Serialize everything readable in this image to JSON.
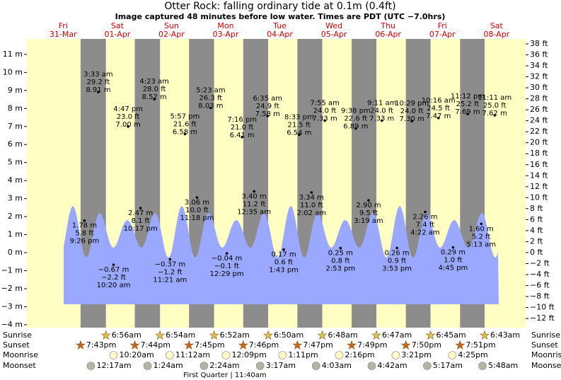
{
  "header": {
    "title": "Otter Rock: falling  ordinary tide at 0.1m (0.4ft)",
    "subtitle": "Image captured 48 minutes before low water. Times are PDT (UTC −7.0hrs)"
  },
  "chart_data": {
    "type": "tide",
    "xlim": [
      -4.08,
      216.9
    ],
    "ylim": [
      -4.16,
      11.86
    ],
    "y2lim": [
      -13.66,
      38.9
    ],
    "yticks": [
      {
        "value": 11,
        "label": "11 m"
      },
      {
        "value": 10,
        "label": "10 m"
      },
      {
        "value": 9,
        "label": "9 m"
      },
      {
        "value": 8,
        "label": "8 m"
      },
      {
        "value": 7,
        "label": "7 m"
      },
      {
        "value": 6,
        "label": "6 m"
      },
      {
        "value": 5,
        "label": "5 m"
      },
      {
        "value": 4,
        "label": "4 m"
      },
      {
        "value": 3,
        "label": "3 m"
      },
      {
        "value": 2,
        "label": "2 m"
      },
      {
        "value": 1,
        "label": "1 m"
      },
      {
        "value": 0,
        "label": "0 m"
      },
      {
        "value": -1,
        "label": "−1 m"
      },
      {
        "value": -2,
        "label": "−2 m"
      },
      {
        "value": -3,
        "label": "−3 m"
      },
      {
        "value": -4,
        "label": "−4 m"
      }
    ],
    "y2ticks": [
      {
        "value": 38,
        "label": "38 ft"
      },
      {
        "value": 36,
        "label": "36 ft"
      },
      {
        "value": 34,
        "label": "34 ft"
      },
      {
        "value": 32,
        "label": "32 ft"
      },
      {
        "value": 30,
        "label": "30 ft"
      },
      {
        "value": 28,
        "label": "28 ft"
      },
      {
        "value": 26,
        "label": "26 ft"
      },
      {
        "value": 24,
        "label": "24 ft"
      },
      {
        "value": 22,
        "label": "22 ft"
      },
      {
        "value": 20,
        "label": "20 ft"
      },
      {
        "value": 18,
        "label": "18 ft"
      },
      {
        "value": 16,
        "label": "16 ft"
      },
      {
        "value": 14,
        "label": "14 ft"
      },
      {
        "value": 12,
        "label": "12 ft"
      },
      {
        "value": 10,
        "label": "10 ft"
      },
      {
        "value": 8,
        "label": "8 ft"
      },
      {
        "value": 6,
        "label": "6 ft"
      },
      {
        "value": 4,
        "label": "4 ft"
      },
      {
        "value": 2,
        "label": "2 ft"
      },
      {
        "value": 0,
        "label": "0 ft"
      },
      {
        "value": -2,
        "label": "−2 ft"
      },
      {
        "value": -4,
        "label": "−4 ft"
      },
      {
        "value": -6,
        "label": "−6 ft"
      },
      {
        "value": -8,
        "label": "−8 ft"
      },
      {
        "value": -10,
        "label": "−10 ft"
      },
      {
        "value": -12,
        "label": "−12 ft"
      }
    ],
    "days": [
      {
        "t": 12,
        "weekday": "Fri",
        "date": "31-Mar"
      },
      {
        "t": 36,
        "weekday": "Sat",
        "date": "01-Apr"
      },
      {
        "t": 60,
        "weekday": "Sun",
        "date": "02-Apr"
      },
      {
        "t": 84,
        "weekday": "Mon",
        "date": "03-Apr"
      },
      {
        "t": 108,
        "weekday": "Tue",
        "date": "04-Apr"
      },
      {
        "t": 132,
        "weekday": "Wed",
        "date": "05-Apr"
      },
      {
        "t": 156,
        "weekday": "Thu",
        "date": "06-Apr"
      },
      {
        "t": 180,
        "weekday": "Fri",
        "date": "07-Apr"
      },
      {
        "t": 204,
        "weekday": "Sat",
        "date": "08-Apr"
      }
    ],
    "events": [
      {
        "t": 21.43,
        "time": "9:26 pm",
        "m": 1.78,
        "m_label": "1.78 m",
        "ft": 5.8,
        "ft_label": "5.8 ft"
      },
      {
        "t": 27.55,
        "time": "3:33 am",
        "m": 8.91,
        "m_label": "8.91 m",
        "ft": 29.2,
        "ft_label": "29.2 ft"
      },
      {
        "t": 34.33,
        "time": "10:20 am",
        "m": -0.67,
        "m_label": "−0.67 m",
        "ft": -2.2,
        "ft_label": "−2.2 ft"
      },
      {
        "t": 40.78,
        "time": "4:47 pm",
        "m": 7.0,
        "m_label": "7.00 m",
        "ft": 23.0,
        "ft_label": "23.0 ft"
      },
      {
        "t": 46.28,
        "time": "10:17 pm",
        "m": 2.47,
        "m_label": "2.47 m",
        "ft": 8.1,
        "ft_label": "8.1 ft"
      },
      {
        "t": 52.38,
        "time": "4:23 am",
        "m": 8.52,
        "m_label": "8.52 m",
        "ft": 28.0,
        "ft_label": "28.0 ft"
      },
      {
        "t": 59.35,
        "time": "11:21 am",
        "m": -0.37,
        "m_label": "−0.37 m",
        "ft": -1.2,
        "ft_label": "−1.2 ft"
      },
      {
        "t": 65.95,
        "time": "5:57 pm",
        "m": 6.58,
        "m_label": "6.58 m",
        "ft": 21.6,
        "ft_label": "21.6 ft"
      },
      {
        "t": 71.3,
        "time": "11:18 pm",
        "m": 3.06,
        "m_label": "3.06 m",
        "ft": 10.0,
        "ft_label": "10.0 ft"
      },
      {
        "t": 77.38,
        "time": "5:23 am",
        "m": 8.03,
        "m_label": "8.03 m",
        "ft": 26.3,
        "ft_label": "26.3 ft"
      },
      {
        "t": 84.48,
        "time": "12:29 pm",
        "m": -0.04,
        "m_label": "−0.04 m",
        "ft": -0.1,
        "ft_label": "−0.1 ft"
      },
      {
        "t": 91.27,
        "time": "7:16 pm",
        "m": 6.41,
        "m_label": "6.41 m",
        "ft": 21.0,
        "ft_label": "21.0 ft"
      },
      {
        "t": 96.58,
        "time": "12:35 am",
        "m": 3.4,
        "m_label": "3.40 m",
        "ft": 11.2,
        "ft_label": "11.2 ft"
      },
      {
        "t": 102.58,
        "time": "6:35 am",
        "m": 7.58,
        "m_label": "7.58 m",
        "ft": 24.9,
        "ft_label": "24.9 ft"
      },
      {
        "t": 109.72,
        "time": "1:43 pm",
        "m": 0.17,
        "m_label": "0.17 m",
        "ft": 0.6,
        "ft_label": "0.6 ft"
      },
      {
        "t": 116.55,
        "time": "8:33 pm",
        "m": 6.54,
        "m_label": "6.54 m",
        "ft": 21.5,
        "ft_label": "21.5 ft"
      },
      {
        "t": 122.03,
        "time": "2:02 am",
        "m": 3.34,
        "m_label": "3.34 m",
        "ft": 11.0,
        "ft_label": "11.0 ft"
      },
      {
        "t": 127.92,
        "time": "7:55 am",
        "m": 7.33,
        "m_label": "7.33 m",
        "ft": 24.0,
        "ft_label": "24.0 ft"
      },
      {
        "t": 134.88,
        "time": "2:53 pm",
        "m": 0.25,
        "m_label": "0.25 m",
        "ft": 0.8,
        "ft_label": "0.8 ft"
      },
      {
        "t": 141.63,
        "time": "9:38 pm",
        "m": 6.89,
        "m_label": "6.89 m",
        "ft": 22.6,
        "ft_label": "22.6 ft"
      },
      {
        "t": 147.32,
        "time": "3:19 am",
        "m": 2.9,
        "m_label": "2.90 m",
        "ft": 9.5,
        "ft_label": "9.5 ft"
      },
      {
        "t": 153.18,
        "time": "9:11 am",
        "m": 7.33,
        "m_label": "7.33 m",
        "ft": 24.0,
        "ft_label": "24.0 ft"
      },
      {
        "t": 159.88,
        "time": "3:53 pm",
        "m": 0.26,
        "m_label": "0.26 m",
        "ft": 0.9,
        "ft_label": "0.9 ft"
      },
      {
        "t": 166.48,
        "time": "10:29 pm",
        "m": 7.3,
        "m_label": "7.30 m",
        "ft": 24.0,
        "ft_label": "24.0 ft"
      },
      {
        "t": 172.37,
        "time": "4:22 am",
        "m": 2.26,
        "m_label": "2.26 m",
        "ft": 7.4,
        "ft_label": "7.4 ft"
      },
      {
        "t": 178.27,
        "time": "10:16 am",
        "m": 7.47,
        "m_label": "7.47 m",
        "ft": 24.5,
        "ft_label": "24.5 ft"
      },
      {
        "t": 184.75,
        "time": "4:45 pm",
        "m": 0.29,
        "m_label": "0.29 m",
        "ft": 1.0,
        "ft_label": "1.0 ft"
      },
      {
        "t": 191.2,
        "time": "11:12 pm",
        "m": 7.69,
        "m_label": "7.69 m",
        "ft": 25.2,
        "ft_label": "25.2 ft"
      },
      {
        "t": 197.22,
        "time": "5:13 am",
        "m": 1.6,
        "m_label": "1.60 m",
        "ft": 5.2,
        "ft_label": "5.2 ft"
      },
      {
        "t": 203.18,
        "time": "11:11 am",
        "m": 7.62,
        "m_label": "7.62 m",
        "ft": 25.0,
        "ft_label": "25.0 ft"
      }
    ],
    "rows": [
      {
        "label": "Sunrise",
        "color": "#e0c050",
        "events": [
          {
            "t": 30.93,
            "time": "6:56am"
          },
          {
            "t": 54.9,
            "time": "6:54am"
          },
          {
            "t": 78.87,
            "time": "6:52am"
          },
          {
            "t": 102.83,
            "time": "6:50am"
          },
          {
            "t": 126.8,
            "time": "6:48am"
          },
          {
            "t": 150.78,
            "time": "6:47am"
          },
          {
            "t": 174.75,
            "time": "6:45am"
          },
          {
            "t": 198.72,
            "time": "6:43am"
          }
        ]
      },
      {
        "label": "Sunset",
        "color": "#c8641e",
        "events": [
          {
            "t": 19.72,
            "time": "7:43pm"
          },
          {
            "t": 43.73,
            "time": "7:44pm"
          },
          {
            "t": 67.75,
            "time": "7:45pm"
          },
          {
            "t": 91.77,
            "time": "7:46pm"
          },
          {
            "t": 115.78,
            "time": "7:47pm"
          },
          {
            "t": 139.82,
            "time": "7:49pm"
          },
          {
            "t": 163.83,
            "time": "7:50pm"
          },
          {
            "t": 187.85,
            "time": "7:51pm"
          }
        ]
      },
      {
        "label": "Moonrise",
        "color": "#ffffcc",
        "events": [
          {
            "t": 34.33,
            "time": "10:20am"
          },
          {
            "t": 59.2,
            "time": "11:12am"
          },
          {
            "t": 84.15,
            "time": "12:09pm"
          },
          {
            "t": 109.18,
            "time": "1:11pm"
          },
          {
            "t": 134.27,
            "time": "2:16pm"
          },
          {
            "t": 159.35,
            "time": "3:21pm"
          },
          {
            "t": 184.42,
            "time": "4:25pm"
          }
        ]
      },
      {
        "label": "Moonset",
        "color": "#b4b4a4",
        "events": [
          {
            "t": 24.28,
            "time": "12:17am"
          },
          {
            "t": 49.4,
            "time": "1:24am"
          },
          {
            "t": 74.4,
            "time": "2:24am"
          },
          {
            "t": 99.28,
            "time": "3:17am"
          },
          {
            "t": 124.05,
            "time": "4:03am"
          },
          {
            "t": 148.7,
            "time": "4:42am"
          },
          {
            "t": 173.28,
            "time": "5:17am"
          },
          {
            "t": 197.8,
            "time": "5:48am"
          }
        ]
      }
    ],
    "moon_phase": {
      "t": 83.67,
      "text": "First Quarter | 11:40am"
    }
  }
}
